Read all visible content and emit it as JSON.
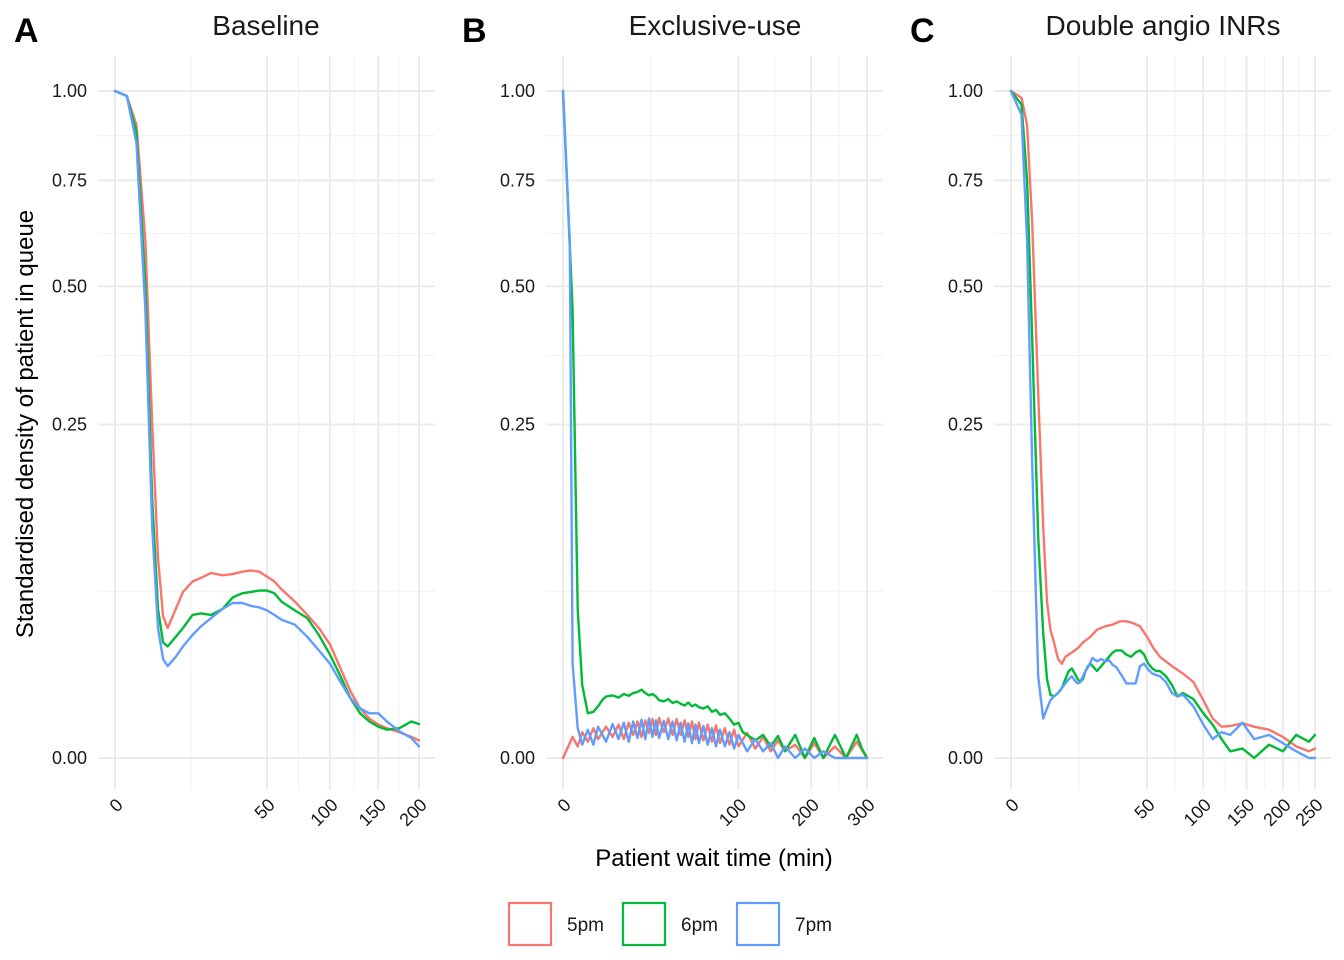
{
  "figure": {
    "xlabel": "Patient wait time (min)",
    "ylabel": "Standardised density of patient in queue",
    "legend": {
      "position": "bottom",
      "items": [
        {
          "label": "5pm",
          "color": "#F8766D"
        },
        {
          "label": "6pm",
          "color": "#00BA38"
        },
        {
          "label": "7pm",
          "color": "#619CFF"
        }
      ]
    }
  },
  "chart_data": [
    {
      "type": "line",
      "tag": "A",
      "title": "Baseline",
      "x_scale": "sqrt",
      "y_scale": "sqrt",
      "xlim": [
        0,
        210
      ],
      "ylim": [
        0,
        1
      ],
      "x_ticks": [
        0,
        50,
        100,
        150,
        200
      ],
      "y_ticks": [
        0,
        0.25,
        0.5,
        0.75,
        1
      ],
      "grid": true,
      "series": [
        {
          "name": "5pm",
          "color": "#F8766D",
          "x": [
            0,
            0.3,
            1,
            2,
            3,
            4,
            5,
            6,
            8,
            10,
            13,
            16,
            20,
            25,
            30,
            35,
            40,
            45,
            50,
            55,
            60,
            70,
            80,
            90,
            100,
            110,
            120,
            130,
            140,
            150,
            160,
            175,
            190,
            200
          ],
          "y": [
            1.0,
            0.985,
            0.9,
            0.6,
            0.25,
            0.09,
            0.045,
            0.038,
            0.05,
            0.062,
            0.07,
            0.073,
            0.077,
            0.075,
            0.076,
            0.078,
            0.079,
            0.078,
            0.074,
            0.07,
            0.064,
            0.055,
            0.046,
            0.038,
            0.029,
            0.018,
            0.01,
            0.0055,
            0.0035,
            0.0025,
            0.002,
            0.0015,
            0.001,
            0.0007
          ]
        },
        {
          "name": "6pm",
          "color": "#00BA38",
          "x": [
            0,
            0.3,
            1,
            2,
            3,
            4,
            5,
            6,
            8,
            10,
            13,
            16,
            20,
            25,
            30,
            35,
            40,
            45,
            50,
            55,
            60,
            70,
            80,
            90,
            100,
            110,
            120,
            130,
            140,
            150,
            160,
            175,
            190,
            200
          ],
          "y": [
            1.0,
            0.985,
            0.88,
            0.5,
            0.15,
            0.05,
            0.03,
            0.028,
            0.033,
            0.038,
            0.046,
            0.047,
            0.046,
            0.05,
            0.058,
            0.061,
            0.062,
            0.063,
            0.063,
            0.061,
            0.055,
            0.049,
            0.044,
            0.034,
            0.024,
            0.015,
            0.008,
            0.0045,
            0.003,
            0.0022,
            0.0018,
            0.002,
            0.003,
            0.0026
          ]
        },
        {
          "name": "7pm",
          "color": "#619CFF",
          "x": [
            0,
            0.3,
            1,
            2,
            3,
            4,
            5,
            6,
            8,
            10,
            13,
            16,
            20,
            25,
            30,
            35,
            40,
            45,
            50,
            55,
            60,
            70,
            80,
            90,
            100,
            110,
            120,
            130,
            140,
            150,
            160,
            175,
            190,
            200
          ],
          "y": [
            1.0,
            0.985,
            0.85,
            0.45,
            0.12,
            0.038,
            0.022,
            0.019,
            0.023,
            0.028,
            0.034,
            0.039,
            0.044,
            0.05,
            0.054,
            0.054,
            0.052,
            0.051,
            0.049,
            0.046,
            0.043,
            0.04,
            0.033,
            0.026,
            0.02,
            0.013,
            0.008,
            0.0055,
            0.0045,
            0.0045,
            0.003,
            0.0016,
            0.0009,
            0.0003
          ]
        }
      ]
    },
    {
      "type": "line",
      "tag": "B",
      "title": "Exclusive-use",
      "x_scale": "sqrt",
      "y_scale": "sqrt",
      "xlim": [
        0,
        310
      ],
      "ylim": [
        0,
        1
      ],
      "x_ticks": [
        0,
        100,
        200,
        300
      ],
      "y_ticks": [
        0,
        0.25,
        0.5,
        0.75,
        1
      ],
      "grid": true,
      "series": [
        {
          "name": "5pm",
          "color": "#F8766D",
          "x": [
            0,
            0.3,
            0.7,
            1.2,
            2,
            3,
            4,
            6,
            8,
            10,
            12,
            14,
            16,
            18,
            20,
            22,
            24,
            26,
            28,
            30,
            33,
            36,
            39,
            42,
            45,
            48,
            51,
            54,
            57,
            60,
            64,
            68,
            72,
            76,
            80,
            85,
            90,
            95,
            100,
            110,
            120,
            130,
            140,
            150,
            160,
            175,
            190,
            205,
            220,
            240,
            260,
            280,
            300
          ],
          "y": [
            0.0,
            0.001,
            0.0003,
            0.0015,
            0.0006,
            0.002,
            0.0008,
            0.0022,
            0.001,
            0.0025,
            0.0008,
            0.0028,
            0.0012,
            0.003,
            0.001,
            0.0032,
            0.0014,
            0.0034,
            0.0012,
            0.0036,
            0.0015,
            0.0035,
            0.0012,
            0.0034,
            0.0012,
            0.0032,
            0.001,
            0.003,
            0.0008,
            0.0028,
            0.0007,
            0.0025,
            0.0006,
            0.0024,
            0.0005,
            0.002,
            0.0004,
            0.0018,
            0.0003,
            0.0014,
            0.0002,
            0.001,
            0.0001,
            0.0007,
            0.0001,
            0.0004,
            0.0,
            0.0005,
            0.0,
            0.0003,
            0.0,
            0.0006,
            0.0
          ]
        },
        {
          "name": "6pm",
          "color": "#00BA38",
          "x": [
            0,
            0.3,
            0.7,
            1.2,
            2,
            3,
            4,
            5,
            6,
            8,
            10,
            12,
            14,
            16,
            18,
            20,
            22,
            24,
            26,
            28,
            30,
            33,
            36,
            39,
            42,
            45,
            48,
            51,
            54,
            57,
            60,
            64,
            68,
            72,
            76,
            80,
            85,
            90,
            95,
            100,
            105,
            110,
            120,
            130,
            140,
            150,
            160,
            175,
            190,
            205,
            220,
            240,
            260,
            280,
            290,
            300
          ],
          "y": [
            1.0,
            0.45,
            0.05,
            0.012,
            0.0045,
            0.0048,
            0.006,
            0.0075,
            0.0085,
            0.0088,
            0.0082,
            0.0092,
            0.0087,
            0.0095,
            0.0098,
            0.0105,
            0.0095,
            0.0088,
            0.0092,
            0.0085,
            0.0075,
            0.0072,
            0.0078,
            0.0068,
            0.0072,
            0.0066,
            0.0062,
            0.0069,
            0.006,
            0.0064,
            0.0058,
            0.0055,
            0.006,
            0.0048,
            0.0052,
            0.0042,
            0.0045,
            0.0035,
            0.0025,
            0.0028,
            0.0015,
            0.0012,
            0.0007,
            0.0012,
            0.0003,
            0.0011,
            0.0001,
            0.0012,
            0.0,
            0.0009,
            0.0,
            0.0012,
            0.0,
            0.0012,
            0.0002,
            0.0
          ]
        },
        {
          "name": "7pm",
          "color": "#619CFF",
          "x": [
            0,
            0.15,
            0.3,
            0.7,
            1.2,
            2,
            3,
            4,
            6,
            8,
            10,
            12,
            14,
            16,
            18,
            20,
            22,
            24,
            26,
            28,
            30,
            33,
            36,
            39,
            42,
            45,
            48,
            51,
            54,
            57,
            60,
            64,
            68,
            72,
            76,
            80,
            85,
            90,
            95,
            100,
            110,
            120,
            130,
            140,
            150,
            160,
            175,
            190,
            205,
            220,
            240,
            260,
            280,
            300
          ],
          "y": [
            1.0,
            0.6,
            0.02,
            0.002,
            0.0004,
            0.0018,
            0.0004,
            0.0022,
            0.0006,
            0.0026,
            0.0008,
            0.0028,
            0.0006,
            0.003,
            0.0009,
            0.0033,
            0.0008,
            0.0035,
            0.001,
            0.0032,
            0.0009,
            0.0031,
            0.0008,
            0.003,
            0.0007,
            0.0028,
            0.0006,
            0.0027,
            0.0005,
            0.0025,
            0.0005,
            0.0023,
            0.0004,
            0.002,
            0.0003,
            0.0018,
            0.0003,
            0.0015,
            0.0002,
            0.0012,
            0.0001,
            0.0008,
            0.0001,
            0.0005,
            0.0,
            0.0003,
            0.0,
            0.0002,
            0.0,
            0.0001,
            0.0,
            0.0,
            0.0,
            0.0
          ]
        }
      ]
    },
    {
      "type": "line",
      "tag": "C",
      "title": "Double angio INRs",
      "x_scale": "sqrt",
      "y_scale": "sqrt",
      "xlim": [
        0,
        260
      ],
      "ylim": [
        0,
        1
      ],
      "x_ticks": [
        0,
        50,
        100,
        150,
        200,
        250
      ],
      "y_ticks": [
        0,
        0.25,
        0.5,
        0.75,
        1
      ],
      "grid": true,
      "series": [
        {
          "name": "5pm",
          "color": "#F8766D",
          "x": [
            0,
            0.3,
            0.7,
            1.2,
            2,
            2.8,
            3.5,
            4.2,
            5,
            6,
            7,
            8,
            10,
            12,
            14,
            17,
            20,
            24,
            28,
            32,
            36,
            40,
            45,
            50,
            55,
            60,
            70,
            80,
            90,
            100,
            110,
            120,
            130,
            145,
            160,
            180,
            200,
            220,
            240,
            250
          ],
          "y": [
            1.0,
            0.98,
            0.9,
            0.65,
            0.3,
            0.12,
            0.055,
            0.037,
            0.03,
            0.022,
            0.02,
            0.023,
            0.025,
            0.027,
            0.03,
            0.033,
            0.037,
            0.039,
            0.04,
            0.042,
            0.042,
            0.041,
            0.039,
            0.033,
            0.027,
            0.023,
            0.019,
            0.016,
            0.013,
            0.0075,
            0.0035,
            0.0022,
            0.0023,
            0.0027,
            0.0022,
            0.0018,
            0.001,
            0.0003,
            0.0001,
            0.0002
          ]
        },
        {
          "name": "6pm",
          "color": "#00BA38",
          "x": [
            0,
            0.3,
            0.7,
            1.2,
            2,
            2.8,
            3.5,
            4.2,
            5,
            6,
            7,
            8,
            9,
            10,
            11,
            12,
            13,
            14,
            15,
            16,
            17,
            18,
            20,
            22,
            24,
            26,
            28,
            30,
            33,
            36,
            39,
            42,
            45,
            48,
            51,
            54,
            57,
            60,
            65,
            70,
            75,
            80,
            90,
            100,
            110,
            120,
            130,
            145,
            160,
            180,
            200,
            220,
            240,
            250
          ],
          "y": [
            1.0,
            0.96,
            0.75,
            0.4,
            0.11,
            0.035,
            0.014,
            0.009,
            0.0085,
            0.0095,
            0.011,
            0.014,
            0.017,
            0.018,
            0.016,
            0.014,
            0.013,
            0.014,
            0.017,
            0.019,
            0.02,
            0.019,
            0.017,
            0.019,
            0.021,
            0.023,
            0.025,
            0.026,
            0.026,
            0.024,
            0.023,
            0.025,
            0.026,
            0.024,
            0.02,
            0.018,
            0.017,
            0.017,
            0.015,
            0.012,
            0.0085,
            0.0095,
            0.0078,
            0.0045,
            0.0025,
            0.0008,
            0.0001,
            0.0002,
            0.0,
            0.0004,
            0.0001,
            0.0012,
            0.0006,
            0.0012
          ]
        },
        {
          "name": "7pm",
          "color": "#619CFF",
          "x": [
            0,
            0.3,
            0.7,
            1.2,
            2,
            2.8,
            3.5,
            4.2,
            5,
            6,
            7,
            8,
            9,
            10,
            11,
            12,
            13,
            14,
            15,
            16,
            17,
            18,
            20,
            22,
            24,
            26,
            28,
            30,
            33,
            36,
            39,
            42,
            45,
            48,
            51,
            54,
            57,
            60,
            65,
            70,
            75,
            80,
            90,
            100,
            110,
            120,
            130,
            145,
            160,
            180,
            200,
            220,
            240,
            250
          ],
          "y": [
            1.0,
            0.93,
            0.6,
            0.2,
            0.015,
            0.0035,
            0.0055,
            0.0075,
            0.0085,
            0.0095,
            0.011,
            0.0125,
            0.014,
            0.015,
            0.0135,
            0.0125,
            0.013,
            0.015,
            0.017,
            0.0185,
            0.0205,
            0.0225,
            0.021,
            0.022,
            0.021,
            0.0215,
            0.0195,
            0.0185,
            0.0155,
            0.0125,
            0.0125,
            0.0125,
            0.019,
            0.02,
            0.0175,
            0.016,
            0.0155,
            0.015,
            0.013,
            0.0095,
            0.0085,
            0.009,
            0.006,
            0.0025,
            0.0008,
            0.0015,
            0.0012,
            0.0028,
            0.0008,
            0.0012,
            0.0005,
            0.0001,
            0.0,
            0.0
          ]
        }
      ]
    }
  ]
}
